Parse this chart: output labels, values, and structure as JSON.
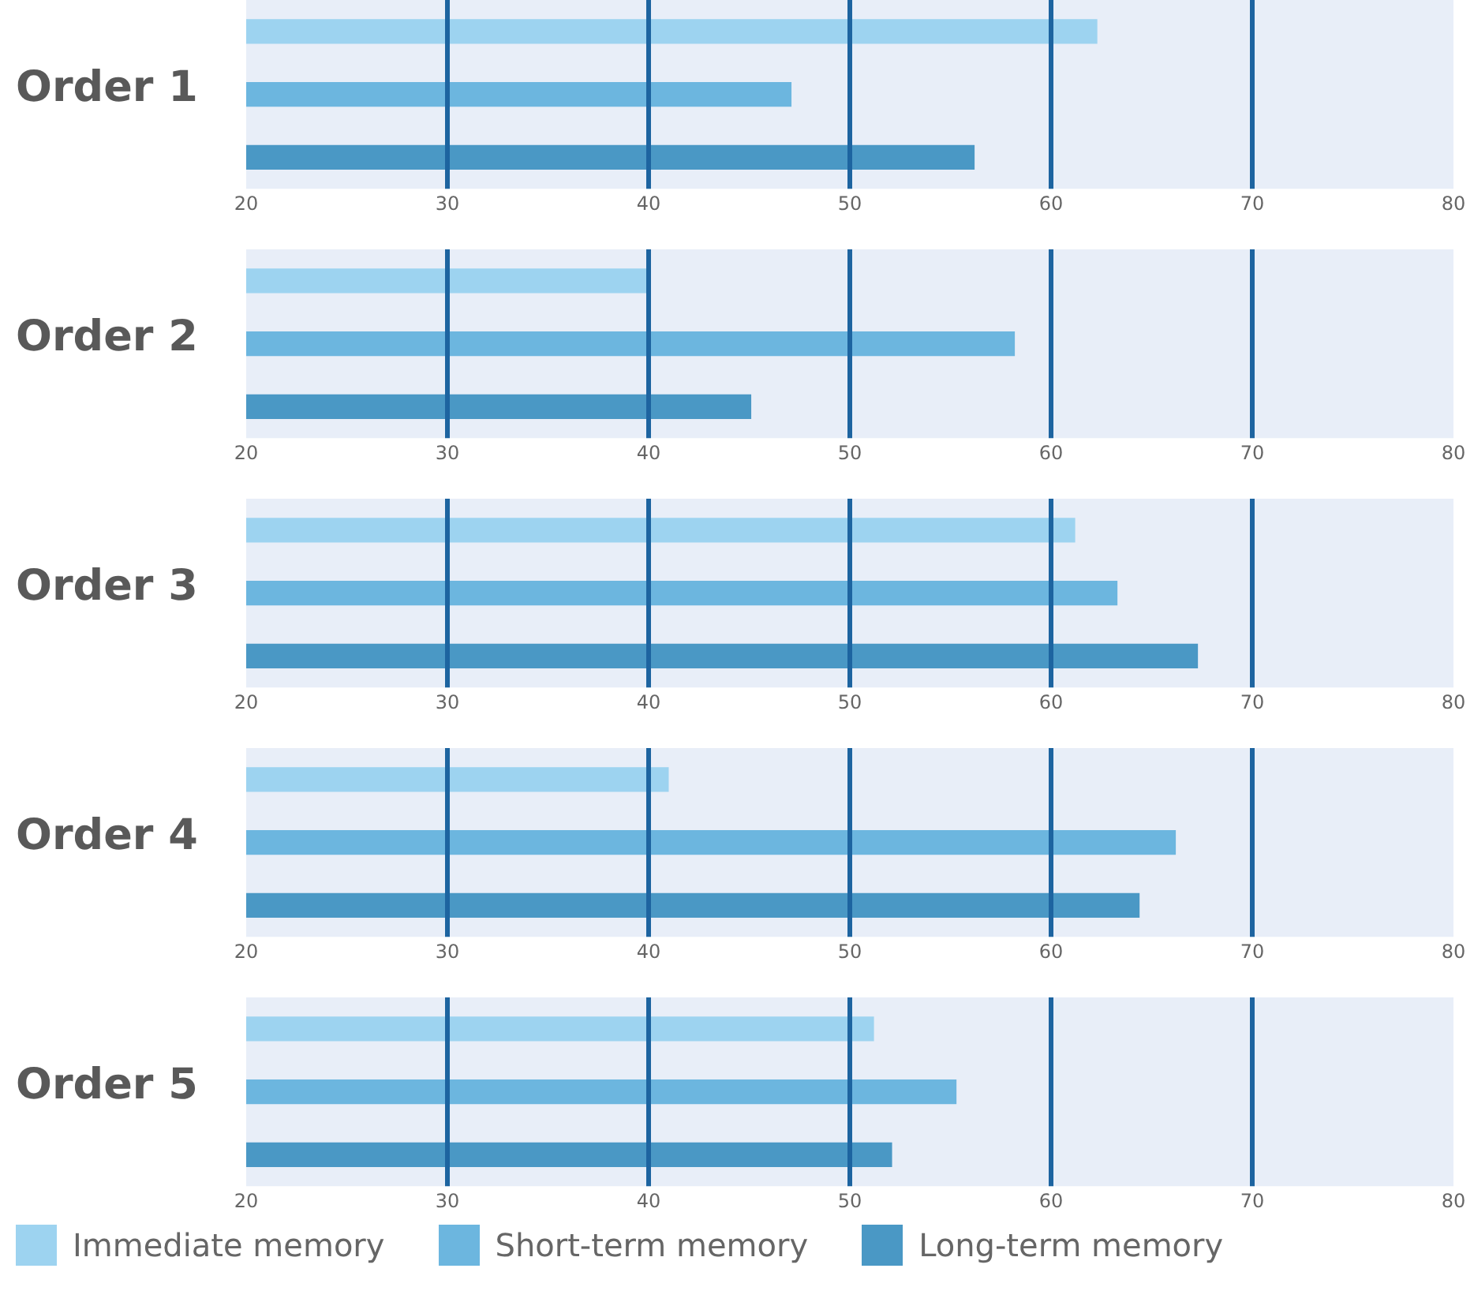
{
  "chart_data": [
    {
      "type": "bar",
      "orientation": "horizontal",
      "title": "Order 1",
      "categories": [
        null
      ],
      "series": [
        {
          "color": "#9dd3f0",
          "values": [
            62.3
          ]
        },
        {
          "color": "#6cb6df",
          "values": [
            47.1
          ]
        },
        {
          "color": "#4a98c5",
          "values": [
            56.2
          ]
        }
      ],
      "xlim": [
        20,
        80
      ],
      "xticks": [
        20,
        30,
        40,
        50,
        60,
        70,
        80
      ],
      "grid": false,
      "legend": false,
      "ref_lines": [
        {
          "axis": "x",
          "value": 30,
          "color": "#1d64a0"
        },
        {
          "axis": "x",
          "value": 40,
          "color": "#1d64a0"
        },
        {
          "axis": "x",
          "value": 50,
          "color": "#1d64a0"
        },
        {
          "axis": "x",
          "value": 60,
          "color": "#1d64a0"
        },
        {
          "axis": "x",
          "value": 70,
          "color": "#1d64a0"
        }
      ]
    },
    {
      "type": "bar",
      "orientation": "horizontal",
      "title": "Order 2",
      "categories": [
        null
      ],
      "series": [
        {
          "color": "#9dd3f0",
          "values": [
            40.0
          ]
        },
        {
          "color": "#6cb6df",
          "values": [
            58.2
          ]
        },
        {
          "color": "#4a98c5",
          "values": [
            45.1
          ]
        }
      ],
      "xlim": [
        20,
        80
      ],
      "xticks": [
        20,
        30,
        40,
        50,
        60,
        70,
        80
      ],
      "grid": false,
      "legend": false,
      "ref_lines": [
        {
          "axis": "x",
          "value": 30,
          "color": "#1d64a0"
        },
        {
          "axis": "x",
          "value": 40,
          "color": "#1d64a0"
        },
        {
          "axis": "x",
          "value": 50,
          "color": "#1d64a0"
        },
        {
          "axis": "x",
          "value": 60,
          "color": "#1d64a0"
        },
        {
          "axis": "x",
          "value": 70,
          "color": "#1d64a0"
        }
      ]
    },
    {
      "type": "bar",
      "orientation": "horizontal",
      "title": "Order 3",
      "categories": [
        null
      ],
      "series": [
        {
          "color": "#9dd3f0",
          "values": [
            61.2
          ]
        },
        {
          "color": "#6cb6df",
          "values": [
            63.3
          ]
        },
        {
          "color": "#4a98c5",
          "values": [
            67.3
          ]
        }
      ],
      "xlim": [
        20,
        80
      ],
      "xticks": [
        20,
        30,
        40,
        50,
        60,
        70,
        80
      ],
      "grid": false,
      "legend": false,
      "ref_lines": [
        {
          "axis": "x",
          "value": 30,
          "color": "#1d64a0"
        },
        {
          "axis": "x",
          "value": 40,
          "color": "#1d64a0"
        },
        {
          "axis": "x",
          "value": 50,
          "color": "#1d64a0"
        },
        {
          "axis": "x",
          "value": 60,
          "color": "#1d64a0"
        },
        {
          "axis": "x",
          "value": 70,
          "color": "#1d64a0"
        }
      ]
    },
    {
      "type": "bar",
      "orientation": "horizontal",
      "title": "Order 4",
      "categories": [
        null
      ],
      "series": [
        {
          "color": "#9dd3f0",
          "values": [
            41.0
          ]
        },
        {
          "color": "#6cb6df",
          "values": [
            66.2
          ]
        },
        {
          "color": "#4a98c5",
          "values": [
            64.4
          ]
        }
      ],
      "xlim": [
        20,
        80
      ],
      "xticks": [
        20,
        30,
        40,
        50,
        60,
        70,
        80
      ],
      "grid": false,
      "legend": false,
      "ref_lines": [
        {
          "axis": "x",
          "value": 30,
          "color": "#1d64a0"
        },
        {
          "axis": "x",
          "value": 40,
          "color": "#1d64a0"
        },
        {
          "axis": "x",
          "value": 50,
          "color": "#1d64a0"
        },
        {
          "axis": "x",
          "value": 60,
          "color": "#1d64a0"
        },
        {
          "axis": "x",
          "value": 70,
          "color": "#1d64a0"
        }
      ]
    },
    {
      "type": "bar",
      "orientation": "horizontal",
      "title": "Order 5",
      "categories": [
        null
      ],
      "series": [
        {
          "name": "Immediate memory",
          "color": "#9dd3f0",
          "values": [
            51.2
          ]
        },
        {
          "name": "Short-term memory",
          "color": "#6cb6df",
          "values": [
            55.3
          ]
        },
        {
          "name": "Long-term memory",
          "color": "#4a98c5",
          "values": [
            52.1
          ]
        }
      ],
      "xlim": [
        20,
        80
      ],
      "xticks": [
        20,
        30,
        40,
        50,
        60,
        70,
        80
      ],
      "grid": false,
      "legend": "bottom",
      "ref_lines": [
        {
          "axis": "x",
          "value": 30,
          "color": "#1d64a0"
        },
        {
          "axis": "x",
          "value": 40,
          "color": "#1d64a0"
        },
        {
          "axis": "x",
          "value": 50,
          "color": "#1d64a0"
        },
        {
          "axis": "x",
          "value": 60,
          "color": "#1d64a0"
        },
        {
          "axis": "x",
          "value": 70,
          "color": "#1d64a0"
        }
      ]
    }
  ]
}
